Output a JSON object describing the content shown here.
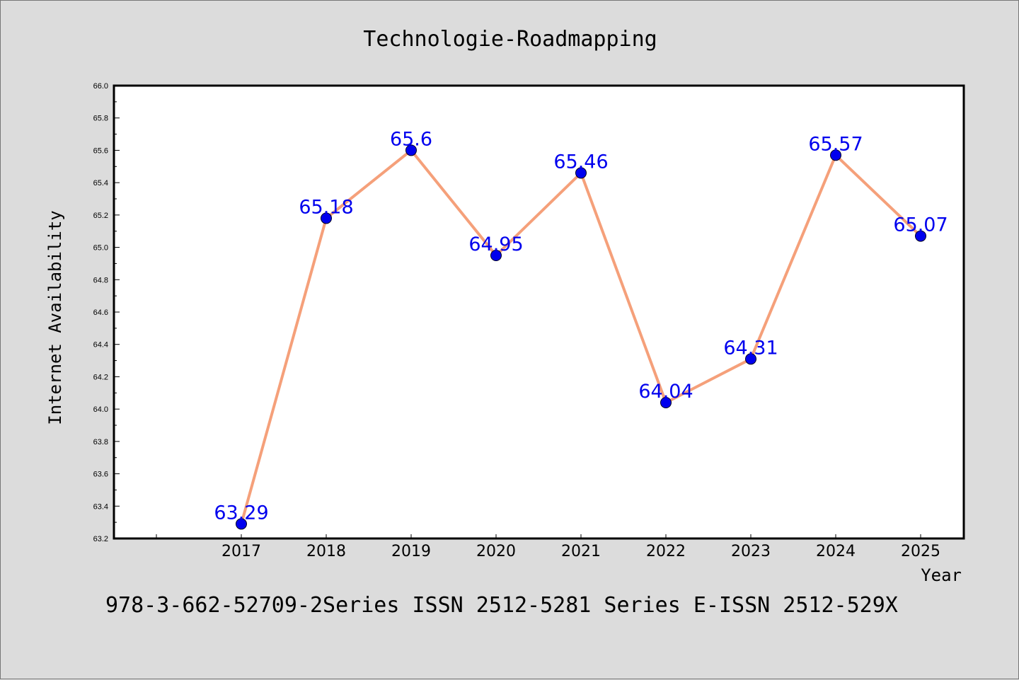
{
  "chart_data": {
    "type": "line",
    "title": "Technologie-Roadmapping",
    "xlabel": "Year",
    "ylabel": "Internet Availability",
    "x": [
      "2017",
      "2018",
      "2019",
      "2020",
      "2021",
      "2022",
      "2023",
      "2024",
      "2025"
    ],
    "series": [
      {
        "values": [
          63.29,
          65.18,
          65.6,
          64.95,
          65.46,
          64.04,
          64.31,
          65.57,
          65.07
        ],
        "labels": [
          "63.29",
          "65.18",
          "65.6",
          "64.95",
          "65.46",
          "64.04",
          "64.31",
          "65.57",
          "65.07"
        ],
        "line_color": "#f5a07a",
        "marker_color": "#0000ee"
      }
    ],
    "ylim": [
      63.2,
      66.0
    ],
    "yticks": [
      "63.2",
      "63.4",
      "63.6",
      "63.8",
      "64.0",
      "64.2",
      "64.4",
      "64.6",
      "64.8",
      "65.0",
      "65.2",
      "65.4",
      "65.6",
      "65.8",
      "66.0"
    ],
    "grid": false,
    "footer": "978-3-662-52709-2Series ISSN 2512-5281 Series E-ISSN 2512-529X",
    "colors": {
      "background": "#dcdcdc",
      "plot_background": "#ffffff",
      "line": "#f5a07a",
      "marker": "#0000ee",
      "data_label": "#0000ee"
    }
  }
}
